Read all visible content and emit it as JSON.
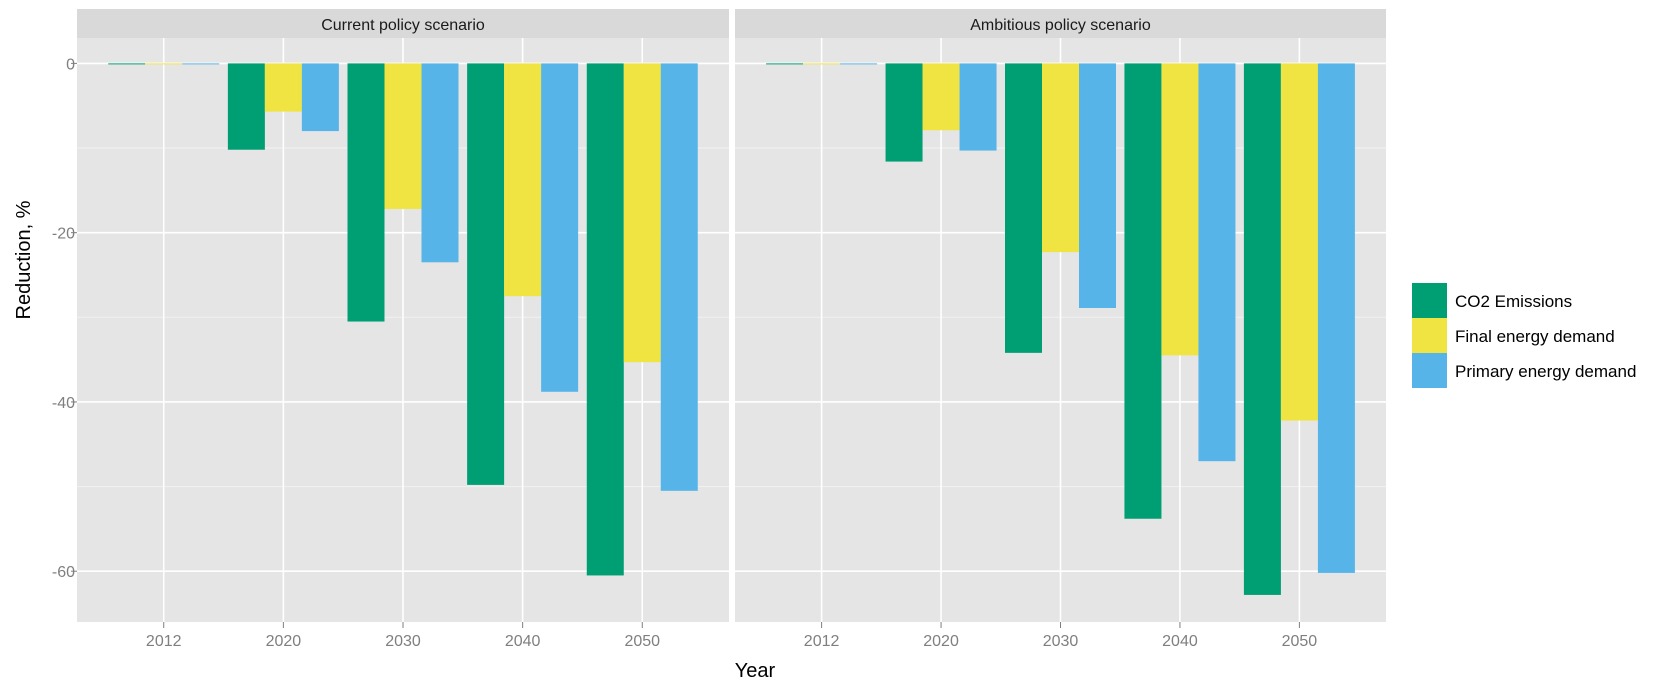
{
  "chart_data": {
    "type": "bar",
    "xlabel": "Year",
    "ylabel": "Reduction, %",
    "ylim": [
      -66,
      3
    ],
    "yticks": [
      0,
      -20,
      -40,
      -60
    ],
    "ytick_labels": [
      "0",
      "-20",
      "-40",
      "-60"
    ],
    "categories": [
      "2012",
      "2020",
      "2030",
      "2040",
      "2050"
    ],
    "grid": true,
    "legend_position": "right",
    "colors": {
      "CO2 Emissions": "#009E73",
      "Final energy demand": "#F0E442",
      "Primary energy demand": "#56B4E9"
    },
    "panels": [
      {
        "title": "Current policy scenario",
        "series": [
          {
            "name": "CO2 Emissions",
            "values": [
              0,
              -10.2,
              -30.5,
              -49.8,
              -60.5
            ]
          },
          {
            "name": "Final energy demand",
            "values": [
              0,
              -5.7,
              -17.2,
              -27.5,
              -35.3
            ]
          },
          {
            "name": "Primary energy demand",
            "values": [
              0,
              -8.0,
              -23.5,
              -38.8,
              -50.5
            ]
          }
        ]
      },
      {
        "title": "Ambitious policy scenario",
        "series": [
          {
            "name": "CO2 Emissions",
            "values": [
              0,
              -11.6,
              -34.2,
              -53.8,
              -62.8
            ]
          },
          {
            "name": "Final energy demand",
            "values": [
              0,
              -7.9,
              -22.3,
              -34.5,
              -42.2
            ]
          },
          {
            "name": "Primary energy demand",
            "values": [
              0,
              -10.3,
              -28.9,
              -47.0,
              -60.2
            ]
          }
        ]
      }
    ]
  }
}
